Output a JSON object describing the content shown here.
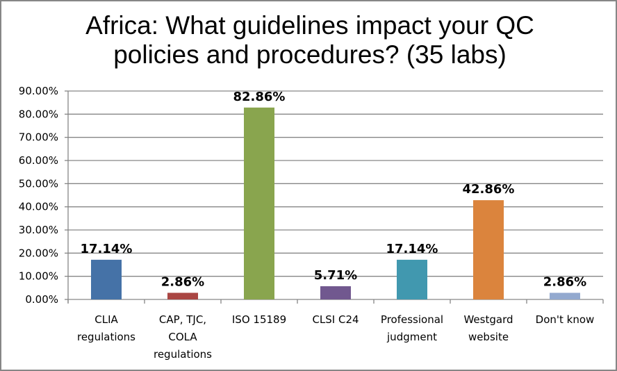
{
  "chart_data": {
    "type": "bar",
    "title": "Africa: What guidelines impact your QC policies and procedures? (35 labs)",
    "title_lines": [
      "Africa: What guidelines impact your QC",
      "policies and procedures? (35 labs)"
    ],
    "categories": [
      [
        "CLIA",
        "regulations"
      ],
      [
        "CAP, TJC,",
        "COLA",
        "regulations"
      ],
      [
        "ISO 15189"
      ],
      [
        "CLSI C24"
      ],
      [
        "Professional",
        "judgment"
      ],
      [
        "Westgard",
        "website"
      ],
      [
        "Don't know"
      ]
    ],
    "values": [
      17.14,
      2.86,
      82.86,
      5.71,
      17.14,
      42.86,
      2.86
    ],
    "data_labels": [
      "17.14%",
      "2.86%",
      "82.86%",
      "5.71%",
      "17.14%",
      "42.86%",
      "2.86%"
    ],
    "colors": [
      "#4572A7",
      "#AA4643",
      "#89A54E",
      "#71588F",
      "#4198AF",
      "#DB843D",
      "#93A9CF"
    ],
    "ylim": [
      0,
      90
    ],
    "yticks": [
      "0.00%",
      "10.00%",
      "20.00%",
      "30.00%",
      "40.00%",
      "50.00%",
      "60.00%",
      "70.00%",
      "80.00%",
      "90.00%"
    ],
    "grid": true,
    "legend": "none",
    "xlabel": "",
    "ylabel": ""
  }
}
